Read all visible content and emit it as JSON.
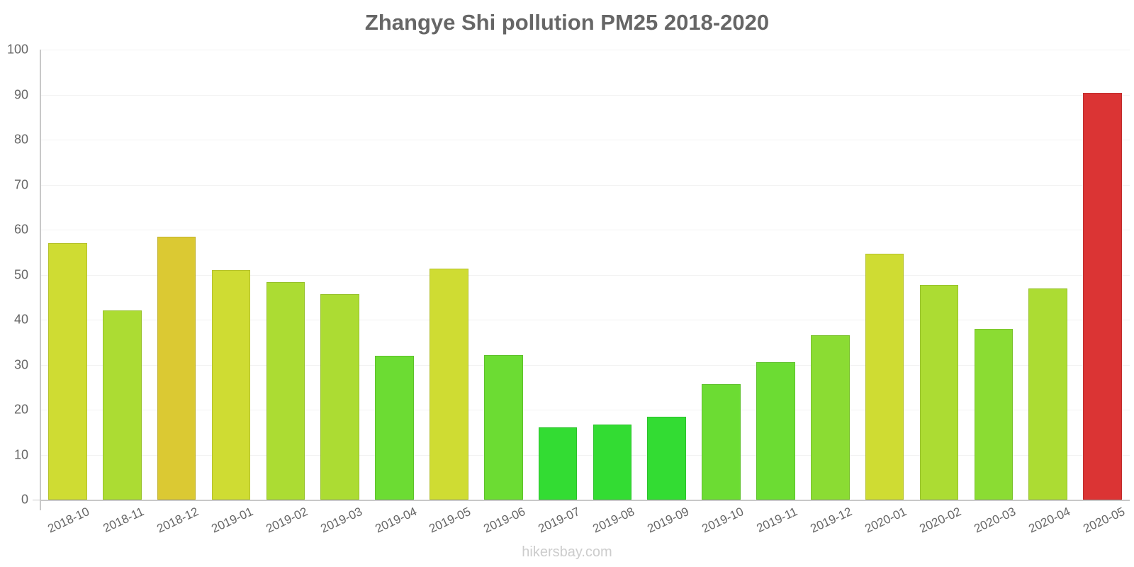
{
  "chart_data": {
    "type": "bar",
    "title": "Zhangye Shi pollution PM25 2018-2020",
    "xlabel": "",
    "ylabel": "",
    "ylim": [
      0,
      100
    ],
    "yticks": [
      0,
      10,
      20,
      30,
      40,
      50,
      60,
      70,
      80,
      90,
      100
    ],
    "grid": true,
    "legend": null,
    "categories": [
      "2018-10",
      "2018-11",
      "2018-12",
      "2019-01",
      "2019-02",
      "2019-03",
      "2019-04",
      "2019-05",
      "2019-06",
      "2019-07",
      "2019-08",
      "2019-09",
      "2019-10",
      "2019-11",
      "2019-12",
      "2020-01",
      "2020-02",
      "2020-03",
      "2020-04",
      "2020-05"
    ],
    "values": [
      57.0,
      42.1,
      58.4,
      51.0,
      48.4,
      45.7,
      32.0,
      51.3,
      32.2,
      16.1,
      16.7,
      18.4,
      25.6,
      30.5,
      36.5,
      54.6,
      47.7,
      37.9,
      46.9,
      90.4
    ],
    "colors": [
      "#cfdc33",
      "#acdc33",
      "#dbc933",
      "#cfdc33",
      "#acdc33",
      "#acdc33",
      "#6cdc33",
      "#cfdc33",
      "#6cdc33",
      "#33dc33",
      "#33dc33",
      "#33dc33",
      "#6cdc33",
      "#6cdc33",
      "#8bdc33",
      "#cfdc33",
      "#acdc33",
      "#8bdc33",
      "#acdc33",
      "#db3434"
    ]
  },
  "footer": {
    "source": "hikersbay.com"
  }
}
